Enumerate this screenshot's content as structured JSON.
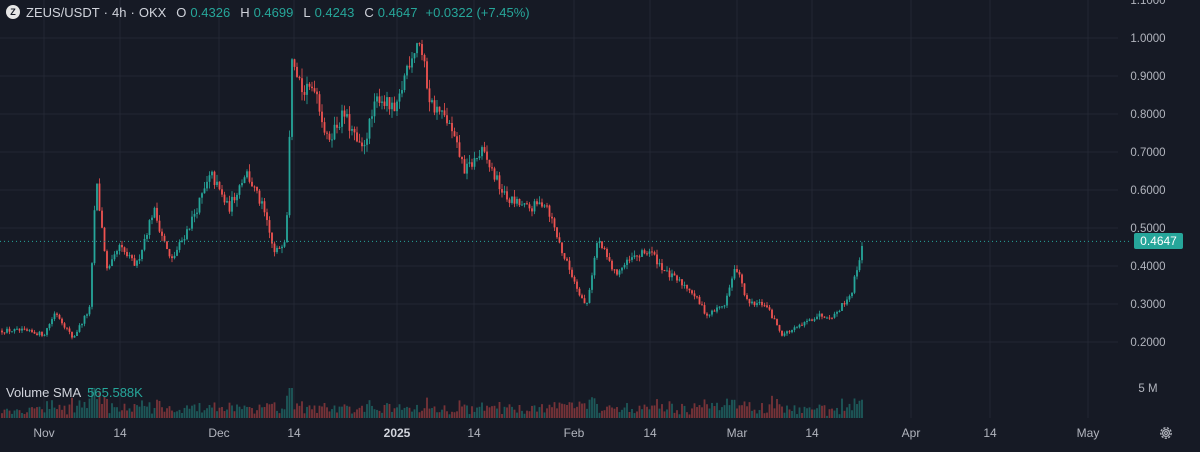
{
  "header": {
    "symbol": "ZEUS/USDT",
    "sep1": "·",
    "interval": "4h",
    "sep2": "·",
    "exchange": "OKX",
    "open_label": "O",
    "open": "0.4326",
    "high_label": "H",
    "high": "0.4699",
    "low_label": "L",
    "low": "0.4243",
    "close_label": "C",
    "close": "0.4647",
    "change": "+0.0322 (+7.45%)"
  },
  "volume_legend": {
    "label": "Volume SMA",
    "value": "565.588K"
  },
  "last_price_tag": "0.4647",
  "price_axis": {
    "labels": [
      "1.1000",
      "1.0000",
      "0.9000",
      "0.8000",
      "0.7000",
      "0.6000",
      "0.5000",
      "0.4000",
      "0.3000",
      "0.2000"
    ],
    "volume_label": "5 M"
  },
  "time_axis": {
    "labels": [
      "Nov",
      "14",
      "Dec",
      "14",
      "2025",
      "14",
      "Feb",
      "14",
      "Mar",
      "14",
      "Apr",
      "14",
      "May"
    ]
  },
  "icons": {
    "settings": "gear-icon",
    "symbol_logo": "zeus-logo-icon"
  },
  "colors": {
    "up": "#26a69a",
    "down": "#ef5350",
    "background": "#161a25",
    "grid": "#232733"
  },
  "chart_data": {
    "type": "candlestick",
    "title": "ZEUS/USDT · 4h · OKX",
    "x_ticks": [
      "Nov",
      "14",
      "Dec",
      "14",
      "2025",
      "14",
      "Feb",
      "14",
      "Mar",
      "14",
      "Apr",
      "14",
      "May"
    ],
    "ylim": [
      0.18,
      1.1
    ],
    "grid": true,
    "price_trend": [
      [
        "Oct 28",
        0.23
      ],
      [
        "Nov 1",
        0.22
      ],
      [
        "Nov 3",
        0.28
      ],
      [
        "Nov 6",
        0.21
      ],
      [
        "Nov 9",
        0.29
      ],
      [
        "Nov 10",
        0.63
      ],
      [
        "Nov 12",
        0.38
      ],
      [
        "Nov 14",
        0.45
      ],
      [
        "Nov 17",
        0.4
      ],
      [
        "Nov 20",
        0.55
      ],
      [
        "Nov 23",
        0.41
      ],
      [
        "Nov 26",
        0.5
      ],
      [
        "Nov 30",
        0.64
      ],
      [
        "Dec 3",
        0.55
      ],
      [
        "Dec 6",
        0.65
      ],
      [
        "Dec 9",
        0.55
      ],
      [
        "Dec 11",
        0.43
      ],
      [
        "Dec 13",
        0.48
      ],
      [
        "Dec 14",
        0.97
      ],
      [
        "Dec 16",
        0.85
      ],
      [
        "Dec 18",
        0.88
      ],
      [
        "Dec 20",
        0.73
      ],
      [
        "Dec 23",
        0.8
      ],
      [
        "Dec 26",
        0.7
      ],
      [
        "Dec 29",
        0.85
      ],
      [
        "Jan 1",
        0.8
      ],
      [
        "Jan 3",
        0.93
      ],
      [
        "Jan 5",
        1.0
      ],
      [
        "Jan 7",
        0.83
      ],
      [
        "Jan 10",
        0.78
      ],
      [
        "Jan 13",
        0.65
      ],
      [
        "Jan 16",
        0.7
      ],
      [
        "Jan 20",
        0.58
      ],
      [
        "Jan 24",
        0.55
      ],
      [
        "Jan 27",
        0.57
      ],
      [
        "Jan 30",
        0.43
      ],
      [
        "Feb 3",
        0.29
      ],
      [
        "Feb 5",
        0.47
      ],
      [
        "Feb 8",
        0.38
      ],
      [
        "Feb 11",
        0.42
      ],
      [
        "Feb 14",
        0.44
      ],
      [
        "Feb 17",
        0.38
      ],
      [
        "Feb 21",
        0.34
      ],
      [
        "Feb 24",
        0.27
      ],
      [
        "Feb 27",
        0.3
      ],
      [
        "Mar 1",
        0.4
      ],
      [
        "Mar 3",
        0.3
      ],
      [
        "Mar 6",
        0.3
      ],
      [
        "Mar 9",
        0.22
      ],
      [
        "Mar 12",
        0.24
      ],
      [
        "Mar 15",
        0.27
      ],
      [
        "Mar 18",
        0.27
      ],
      [
        "Mar 21",
        0.33
      ],
      [
        "Mar 23",
        0.4647
      ]
    ],
    "last_close": 0.4647,
    "volume_sma": "565.588K",
    "volume_axis": "5 M"
  }
}
